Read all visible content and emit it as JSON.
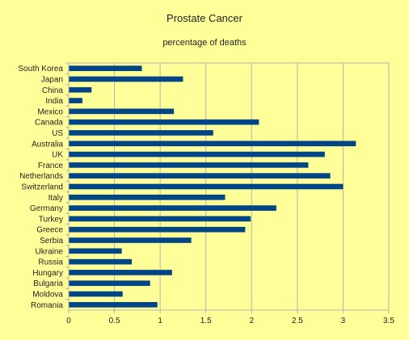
{
  "chart_data": {
    "type": "bar",
    "orientation": "horizontal",
    "title": "Prostate Cancer",
    "subtitle": "percentage of deaths",
    "categories": [
      "South Korea",
      "Japan",
      "China",
      "India",
      "Mexico",
      "Canada",
      "US",
      "Australia",
      "UK",
      "France",
      "Netherlands",
      "Switzerland",
      "Italy",
      "Germany",
      "Turkey",
      "Greece",
      "Serbia",
      "Ukraine",
      "Russia",
      "Hungary",
      "Bulgaria",
      "Moldova",
      "Romania"
    ],
    "values": [
      0.8,
      1.25,
      0.25,
      0.15,
      1.15,
      2.08,
      1.58,
      3.14,
      2.8,
      2.62,
      2.86,
      3.0,
      1.71,
      2.27,
      1.99,
      1.93,
      1.34,
      0.58,
      0.69,
      1.13,
      0.89,
      0.59,
      0.97
    ],
    "xlim": [
      0,
      3.5
    ],
    "xticks": [
      "0",
      "0.5",
      "1",
      "1.5",
      "2",
      "2.5",
      "3",
      "3.5"
    ],
    "grid": "vertical",
    "bar_color": "#004586",
    "background": "#ffff99"
  }
}
